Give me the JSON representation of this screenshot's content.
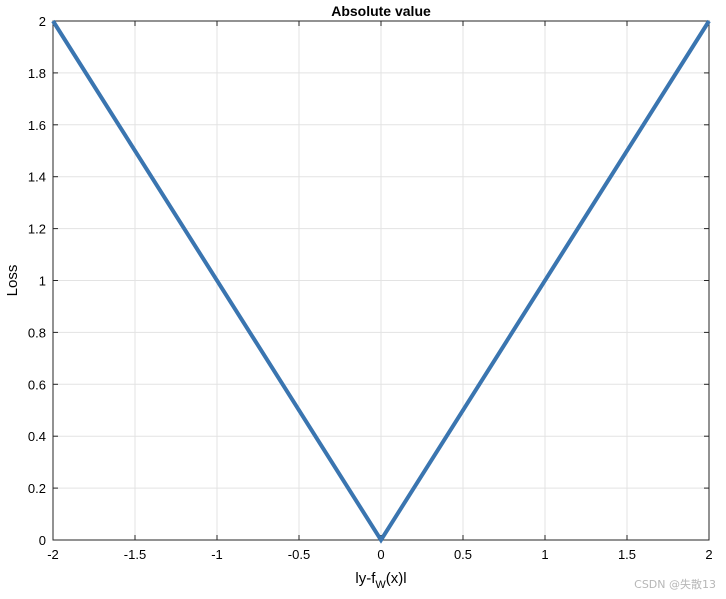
{
  "chart_data": {
    "type": "line",
    "title": "Absolute value",
    "xlabel": {
      "main": "ly-f",
      "sub": "W",
      "tail": "(x)l"
    },
    "ylabel": "Loss",
    "xlim": [
      -2,
      2
    ],
    "ylim": [
      0,
      2
    ],
    "x_ticks": [
      "-2",
      "-1.5",
      "-1",
      "-0.5",
      "0",
      "0.5",
      "1",
      "1.5",
      "2"
    ],
    "y_ticks": [
      "0",
      "0.2",
      "0.4",
      "0.6",
      "0.8",
      "1",
      "1.2",
      "1.4",
      "1.6",
      "1.8",
      "2"
    ],
    "grid": true,
    "line_color": "#3a75b0",
    "series": [
      {
        "x": [
          -2,
          0,
          2
        ],
        "y": [
          2,
          0,
          2
        ]
      }
    ]
  },
  "watermark": "CSDN @失散13"
}
